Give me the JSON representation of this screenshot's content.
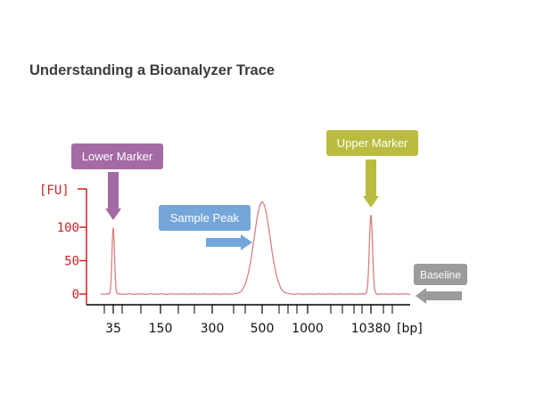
{
  "header": {
    "title": "Understanding a Bioanalyzer Trace"
  },
  "chart_data": {
    "type": "line",
    "title": "Understanding a Bioanalyzer Trace",
    "ylabel": "[FU]",
    "xlabel": "[bp]",
    "yticks": [
      "0",
      "50",
      "100"
    ],
    "ylim": [
      -10,
      150
    ],
    "xticks": [
      "35",
      "150",
      "300",
      "500",
      "1000",
      "10380"
    ],
    "grid": false,
    "series": [
      {
        "color": "#d98080",
        "peaks": [
          {
            "x": "35",
            "y": 100
          },
          {
            "x": "500",
            "y": 138
          },
          {
            "x": "10380",
            "y": 118
          }
        ],
        "baseline": 0
      }
    ],
    "annotations": [
      {
        "label": "Lower Marker",
        "color": "#a46aa4",
        "arrow": "down",
        "target": "35"
      },
      {
        "label": "Sample Peak",
        "color": "#74a6d9",
        "arrow": "right",
        "target": "500"
      },
      {
        "label": "Upper Marker",
        "color": "#b9bc3e",
        "arrow": "down",
        "target": "10380"
      },
      {
        "label": "Baseline",
        "color": "#9b9b9b",
        "arrow": "left",
        "target": "0"
      }
    ],
    "axis_color": "#cc2222"
  }
}
